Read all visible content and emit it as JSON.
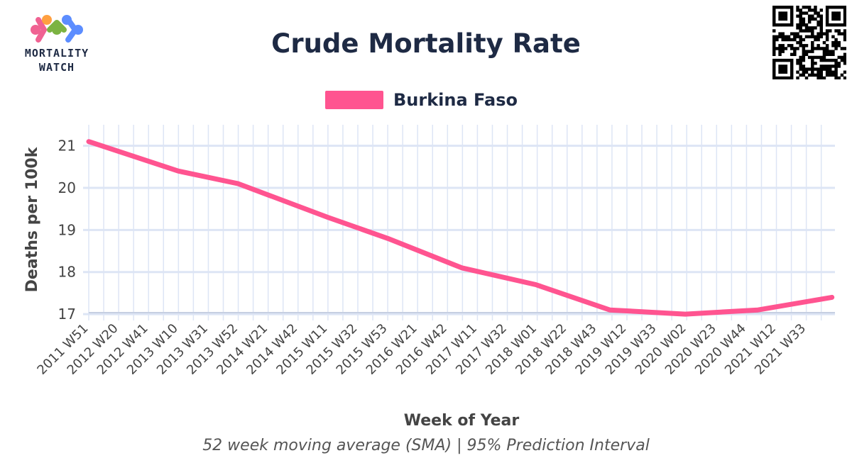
{
  "logo": {
    "line1": "MORTALITY",
    "line2": "WATCH"
  },
  "colors": {
    "series": "#ff5490",
    "grid": "#dde5f5",
    "axis": "#c6cfe2",
    "text": "#1e2a44",
    "tick": "#444444",
    "logo_pink": "#f06292",
    "logo_orange": "#ffa040",
    "logo_green": "#7cb342",
    "logo_blue": "#5c8dff"
  },
  "chart_data": {
    "type": "line",
    "title": "Crude Mortality Rate",
    "xlabel": "Week of Year",
    "ylabel": "Deaths per 100k",
    "caption": "52 week moving average (SMA) | 95% Prediction Interval",
    "legend_position": "top-center",
    "grid": true,
    "ylim": [
      16.85,
      21.5
    ],
    "yticks": [
      17,
      18,
      19,
      20,
      21
    ],
    "categories": [
      "2011 W51",
      "2012 W20",
      "2012 W41",
      "2013 W10",
      "2013 W31",
      "2013 W52",
      "2014 W21",
      "2014 W42",
      "2015 W11",
      "2015 W32",
      "2015 W53",
      "2016 W21",
      "2016 W42",
      "2017 W11",
      "2017 W32",
      "2018 W01",
      "2018 W22",
      "2018 W43",
      "2019 W12",
      "2019 W33",
      "2020 W02",
      "2020 W23",
      "2020 W44",
      "2021 W12",
      "2021 W33"
    ],
    "series": [
      {
        "name": "Burkina Faso",
        "points": [
          [
            "2011 W51",
            21.1
          ],
          [
            "2013 W10",
            20.4
          ],
          [
            "2013 W52",
            20.1
          ],
          [
            "2015 W11",
            19.3
          ],
          [
            "2015 W53",
            18.8
          ],
          [
            "2016 W53",
            18.1
          ],
          [
            "2018 W01",
            17.7
          ],
          [
            "2019 W01",
            17.1
          ],
          [
            "2020 W02",
            17.0
          ],
          [
            "2021 W01",
            17.1
          ],
          [
            "2022 W01",
            17.4
          ]
        ]
      }
    ]
  }
}
